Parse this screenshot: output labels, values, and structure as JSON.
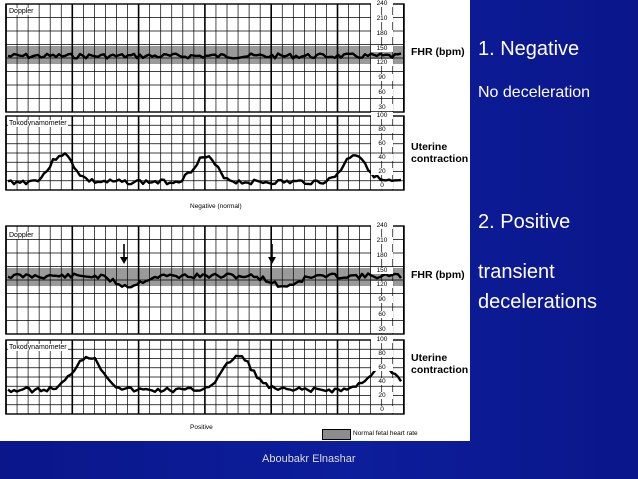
{
  "slide": {
    "negative": {
      "heading": "1. Negative",
      "subtitle": "No deceleration"
    },
    "positive": {
      "heading": "2. Positive",
      "subtitle": "transient decelerations"
    },
    "footer": "Aboubakr Elnashar"
  },
  "figure": {
    "doppler_label": "Doppler",
    "toco_label": "Tokodynamometer",
    "fhr_label": "FHR (bpm)",
    "uterine_label_1": "Uterine",
    "uterine_label_2": "contraction",
    "negative_caption": "Negative (normal)",
    "positive_caption": "Positive",
    "legend_label": "Normal fetal heart rate",
    "fhr_ticks": [
      "240",
      "210",
      "180",
      "150",
      "120",
      "90",
      "60",
      "30"
    ],
    "uc_ticks": [
      "100",
      "80",
      "60",
      "40",
      "20",
      "0"
    ]
  },
  "colors": {
    "background": "#0b1a8f",
    "text": "#ffffff",
    "normal_band": "#8c8c8c"
  }
}
